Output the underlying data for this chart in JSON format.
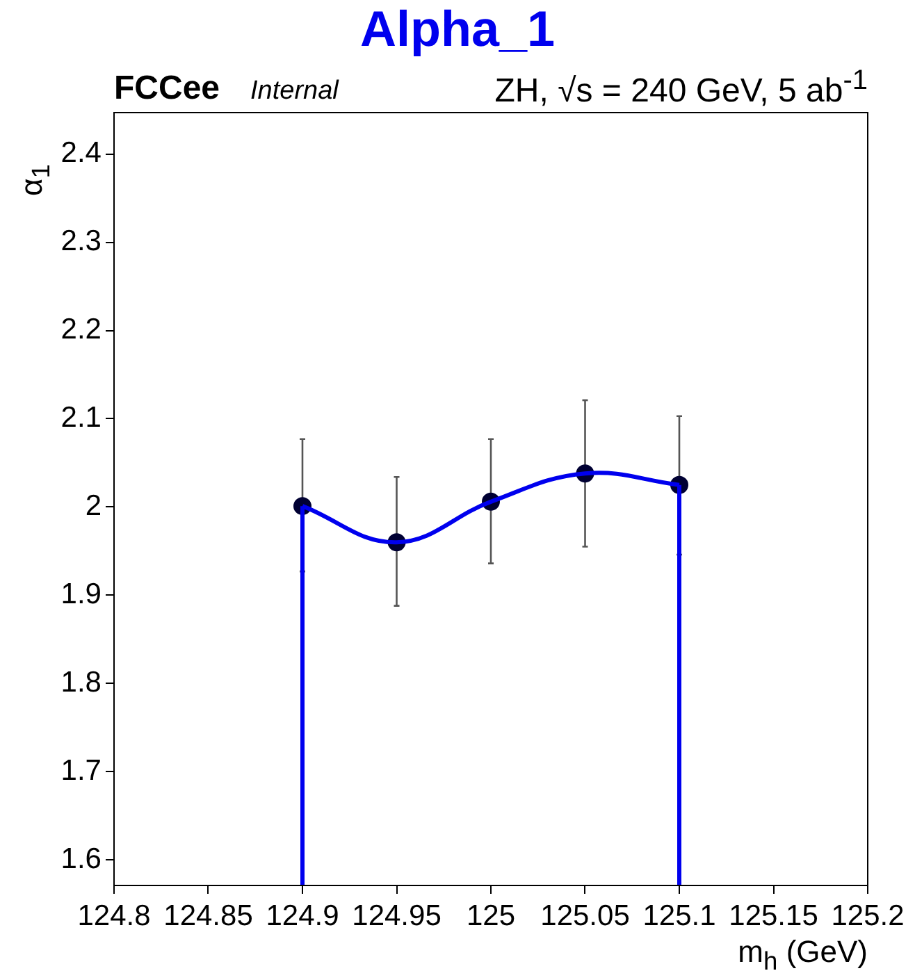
{
  "chart_data": {
    "type": "scatter",
    "title": "Alpha_1",
    "xlabel": "m$_{h}$ (GeV)",
    "ylabel": "α$_{1}$",
    "annotations": [
      "FCCee",
      "Internal",
      "ZH, √s = 240 GeV, 5 ab$^{-1}$"
    ],
    "xlim": [
      124.8,
      125.2
    ],
    "xticks": [
      124.8,
      124.85,
      124.9,
      124.95,
      125,
      125.05,
      125.1,
      125.15,
      125.2
    ],
    "ylim": [
      1.571,
      2.447
    ],
    "yticks": [
      1.6,
      1.7,
      1.8,
      1.9,
      2,
      2.1,
      2.2,
      2.3,
      2.4
    ],
    "grid": false,
    "legend": false,
    "series": [
      {
        "type": "line",
        "color": "#0000ee",
        "x": [
          124.9,
          124.95,
          125,
          125.05,
          125.1
        ],
        "values": [
          2.001,
          1.96,
          2.006,
          2.038,
          2.025
        ]
      },
      {
        "type": "line",
        "color": "#0000ee",
        "x": [
          124.9,
          124.9
        ],
        "values": [
          1.571,
          2.001
        ]
      },
      {
        "type": "line",
        "color": "#0000ee",
        "x": [
          125.1,
          125.1
        ],
        "values": [
          1.571,
          2.025
        ]
      },
      {
        "type": "scatter",
        "color": "#000033",
        "marker": "circle",
        "x": [
          124.9,
          124.95,
          125,
          125.05,
          125.1
        ],
        "values": [
          2.001,
          1.96,
          2.006,
          2.038,
          2.025
        ],
        "errors": [
          [
            1.927,
            2.077
          ],
          [
            1.888,
            2.034
          ],
          [
            1.936,
            2.077
          ],
          [
            1.955,
            2.121
          ],
          [
            1.946,
            2.103
          ]
        ]
      }
    ]
  }
}
